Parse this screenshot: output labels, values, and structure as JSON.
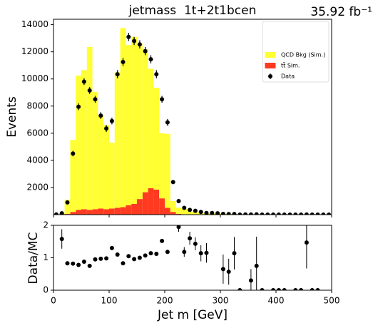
{
  "chart_data": [
    {
      "type": "histogram",
      "title": "jetmass  1t+2t1bcen",
      "subtitle": "35.92 fb⁻¹",
      "ylabel": "Events",
      "bins": [
        0,
        10,
        20,
        30,
        40,
        50,
        60,
        70,
        80,
        90,
        100,
        110,
        120,
        130,
        140,
        150,
        160,
        170,
        180,
        190,
        200,
        210,
        220,
        230,
        240,
        250,
        260,
        270,
        280,
        290,
        300,
        310,
        320,
        330,
        340,
        350,
        360,
        370,
        380,
        390,
        400,
        410,
        420,
        430,
        440,
        450,
        460,
        470,
        480,
        490,
        500
      ],
      "series": [
        {
          "name": "tt̄ Sim.",
          "color": "#ff3a20",
          "stacked": true,
          "values": [
            0,
            0,
            50,
            200,
            350,
            400,
            350,
            400,
            450,
            400,
            450,
            500,
            550,
            700,
            800,
            1150,
            1650,
            1950,
            1850,
            1200,
            500,
            200,
            60,
            30,
            20,
            10,
            10,
            5,
            5,
            5,
            0,
            0,
            0,
            0,
            0,
            0,
            0,
            0,
            0,
            0,
            0,
            0,
            0,
            0,
            0,
            0,
            0,
            0,
            0,
            0
          ]
        },
        {
          "name": "QCD Bkg (Sim.)",
          "color": "#ffff33",
          "stacked": true,
          "values": [
            0,
            100,
            1050,
            5300,
            9900,
            10250,
            12000,
            8650,
            6900,
            6200,
            4850,
            10000,
            13200,
            11800,
            12300,
            11450,
            10550,
            8800,
            7500,
            4800,
            5450,
            800,
            450,
            390,
            200,
            190,
            165,
            100,
            95,
            75,
            75,
            70,
            40,
            40,
            30,
            30,
            25,
            20,
            20,
            15,
            15,
            12,
            10,
            10,
            8,
            8,
            6,
            6,
            5,
            5
          ]
        },
        {
          "name": "Data",
          "color": "#000000",
          "points": true,
          "values": [
            10,
            100,
            900,
            4500,
            7950,
            9800,
            9150,
            8500,
            7300,
            6350,
            6900,
            10350,
            11250,
            13100,
            12800,
            12550,
            12050,
            11450,
            10350,
            8500,
            6800,
            2400,
            1000,
            500,
            350,
            280,
            200,
            120,
            120,
            100,
            50,
            40,
            45,
            0,
            10,
            9,
            19,
            0,
            0,
            0,
            0,
            0,
            0,
            0,
            0,
            7,
            0,
            0,
            0,
            0
          ],
          "errors": [
            20,
            40,
            100,
            200,
            250,
            250,
            250,
            250,
            250,
            250,
            250,
            300,
            300,
            300,
            300,
            300,
            300,
            300,
            300,
            250,
            250,
            150,
            100,
            60,
            50,
            40,
            35,
            30,
            30,
            25,
            20,
            20,
            20,
            0,
            10,
            10,
            15,
            0,
            0,
            0,
            0,
            0,
            0,
            0,
            0,
            8,
            0,
            0,
            0,
            0
          ]
        }
      ],
      "xlim": [
        0,
        500
      ],
      "ylim": [
        0,
        14400
      ],
      "yticks": [
        2000,
        4000,
        6000,
        8000,
        10000,
        12000,
        14000
      ],
      "legend": "upper right"
    },
    {
      "type": "ratio",
      "xlabel": "Jet m [GeV]",
      "ylabel": "Data/MC",
      "x": [
        5,
        15,
        25,
        35,
        45,
        55,
        65,
        75,
        85,
        95,
        105,
        115,
        125,
        135,
        145,
        155,
        165,
        175,
        185,
        195,
        205,
        215,
        225,
        235,
        245,
        255,
        265,
        275,
        285,
        295,
        305,
        315,
        325,
        335,
        345,
        355,
        365,
        375,
        385,
        395,
        405,
        415,
        425,
        435,
        445,
        455,
        465,
        475,
        485,
        495
      ],
      "values": [
        null,
        1.58,
        0.83,
        0.82,
        0.78,
        0.88,
        0.75,
        0.95,
        0.97,
        0.98,
        1.3,
        1.1,
        0.83,
        1.05,
        0.96,
        1.0,
        1.07,
        1.14,
        1.12,
        1.52,
        1.18,
        null,
        1.95,
        1.18,
        1.6,
        1.43,
        1.14,
        1.15,
        null,
        null,
        0.65,
        0.57,
        1.14,
        0,
        null,
        0.3,
        0.75,
        0,
        null,
        0,
        0,
        0,
        null,
        0,
        0,
        1.47,
        0,
        0,
        null,
        null
      ],
      "errors": [
        null,
        0.3,
        0.05,
        0.03,
        0.03,
        0.03,
        0.03,
        0.03,
        0.03,
        0.03,
        0.04,
        0.03,
        0.03,
        0.03,
        0.03,
        0.03,
        0.03,
        0.03,
        0.03,
        0.04,
        0.05,
        null,
        0.15,
        0.15,
        0.2,
        0.2,
        0.25,
        0.3,
        null,
        null,
        0.45,
        0.4,
        0.5,
        0,
        null,
        0.35,
        0.9,
        0,
        null,
        0,
        0,
        0,
        null,
        0,
        0,
        0.8,
        0,
        0,
        null,
        null
      ],
      "color": "#000000",
      "xlim": [
        0,
        500
      ],
      "xticks": [
        0,
        100,
        200,
        300,
        400,
        500
      ],
      "ylim": [
        0,
        2
      ],
      "yticks": [
        0,
        1,
        2
      ]
    }
  ]
}
